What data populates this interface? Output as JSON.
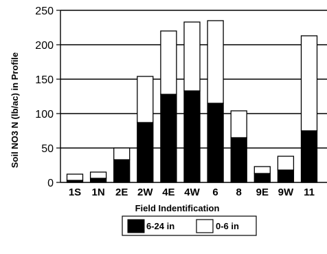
{
  "chart_data": {
    "type": "bar",
    "stacked": true,
    "categories": [
      "1S",
      "1N",
      "2E",
      "2W",
      "4E",
      "4W",
      "6",
      "8",
      "9E",
      "9W",
      "11"
    ],
    "series": [
      {
        "name": "6-24 in",
        "color": "#000000",
        "values": [
          3,
          6,
          33,
          87,
          128,
          133,
          115,
          65,
          13,
          18,
          75
        ]
      },
      {
        "name": "0-6 in",
        "color": "#ffffff",
        "values": [
          9,
          9,
          17,
          67,
          92,
          100,
          120,
          39,
          10,
          20,
          138
        ]
      }
    ],
    "xlabel": "Field Indentification",
    "ylabel": "Soil NO3 N (lb/ac) in Profile",
    "ylim": [
      0,
      250
    ],
    "yticks": [
      0,
      50,
      100,
      150,
      200,
      250
    ],
    "grid": true,
    "legend": "bottom",
    "title": ""
  }
}
